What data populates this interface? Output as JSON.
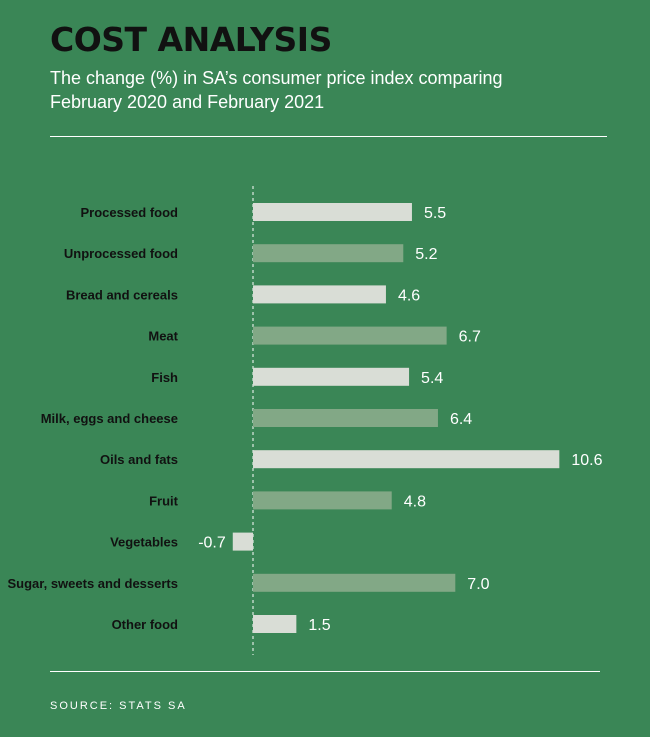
{
  "header": {
    "title": "COST ANALYSIS",
    "subtitle": "The change (%) in SA’s consumer price index comparing February 2020 and February 2021"
  },
  "footer": {
    "source": "SOURCE: STATS SA"
  },
  "colors": {
    "background": "#3a8656",
    "bar_light": "#d9ddd6",
    "bar_dark": "#82a886",
    "label": "#111111",
    "value": "#ffffff"
  },
  "chart_data": {
    "type": "bar",
    "orientation": "horizontal",
    "title": "COST ANALYSIS",
    "subtitle": "The change (%) in SA’s consumer price index comparing February 2020 and February 2021",
    "categories": [
      "Processed food",
      "Unprocessed food",
      "Bread and cereals",
      "Meat",
      "Fish",
      "Milk, eggs and cheese",
      "Oils and fats",
      "Fruit",
      "Vegetables",
      "Sugar, sweets and desserts",
      "Other food"
    ],
    "values": [
      5.5,
      5.2,
      4.6,
      6.7,
      5.4,
      6.4,
      10.6,
      4.8,
      -0.7,
      7.0,
      1.5
    ],
    "value_labels": [
      "5.5",
      "5.2",
      "4.6",
      "6.7",
      "5.4",
      "6.4",
      "10.6",
      "4.8",
      "-0.7",
      "7.0",
      "1.5"
    ],
    "bar_style": [
      "light",
      "dark",
      "light",
      "dark",
      "light",
      "dark",
      "light",
      "dark",
      "light",
      "dark",
      "light"
    ],
    "xlim": [
      -0.7,
      10.6
    ],
    "zero_line": "dashed",
    "grid": false,
    "legend": "none"
  }
}
